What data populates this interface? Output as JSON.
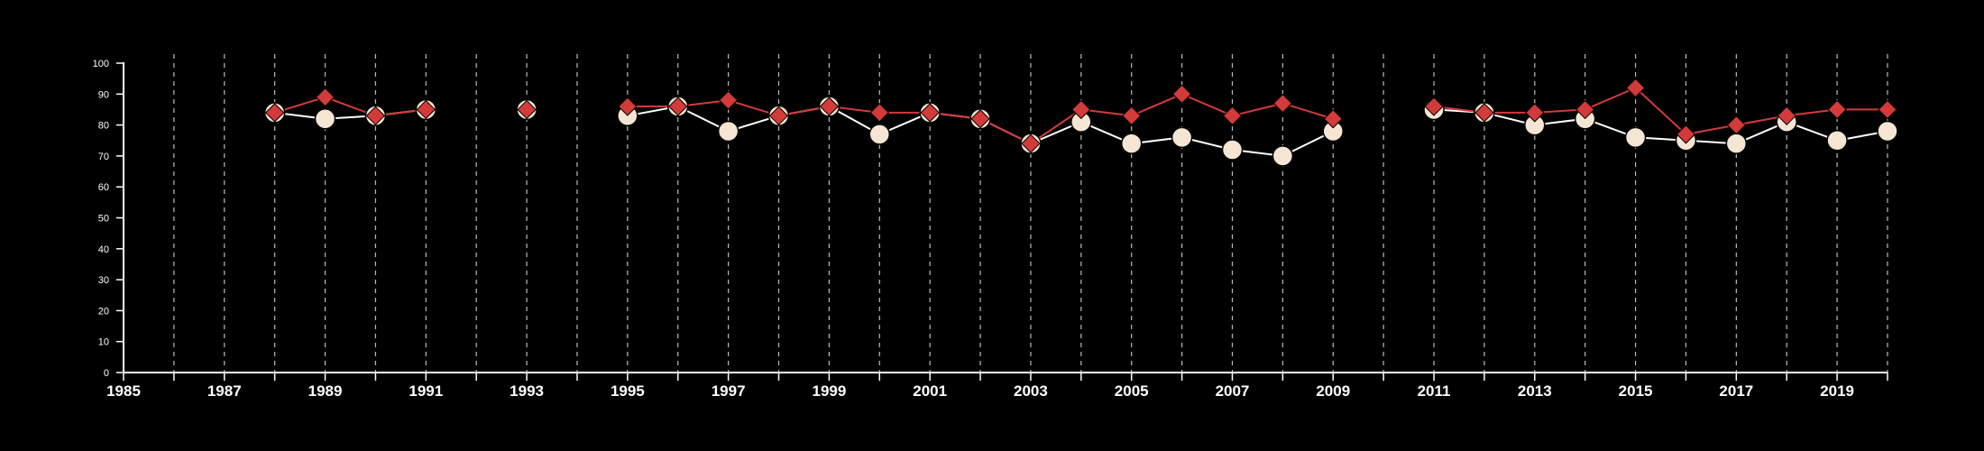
{
  "chart_data": {
    "type": "line",
    "title": "",
    "xlabel": "",
    "ylabel": "",
    "xlim": [
      1985,
      2020
    ],
    "ylim": [
      0,
      100
    ],
    "x_ticks": [
      "1985",
      "1987",
      "1989",
      "1991",
      "1993",
      "1995",
      "1997",
      "1999",
      "2001",
      "2003",
      "2005",
      "2007",
      "2009",
      "2011",
      "2013",
      "2015",
      "2017",
      "2019"
    ],
    "y_ticks": [
      "0",
      "10",
      "20",
      "30",
      "40",
      "50",
      "60",
      "70",
      "80",
      "90",
      "100"
    ],
    "grid": {
      "vertical": true,
      "horizontal": false
    },
    "series": [
      {
        "marker": "circle",
        "color": "#f5e6d3",
        "points": [
          {
            "x": 1988,
            "y": 84
          },
          {
            "x": 1989,
            "y": 82
          },
          {
            "x": 1990,
            "y": 83
          },
          {
            "x": 1991,
            "y": 85
          },
          {
            "x": 1993,
            "y": 85
          },
          {
            "x": 1995,
            "y": 83
          },
          {
            "x": 1996,
            "y": 86
          },
          {
            "x": 1997,
            "y": 78
          },
          {
            "x": 1998,
            "y": 83
          },
          {
            "x": 1999,
            "y": 86
          },
          {
            "x": 2000,
            "y": 77
          },
          {
            "x": 2001,
            "y": 84
          },
          {
            "x": 2002,
            "y": 82
          },
          {
            "x": 2003,
            "y": 74
          },
          {
            "x": 2004,
            "y": 81
          },
          {
            "x": 2005,
            "y": 74
          },
          {
            "x": 2006,
            "y": 76
          },
          {
            "x": 2007,
            "y": 72
          },
          {
            "x": 2008,
            "y": 70
          },
          {
            "x": 2009,
            "y": 78
          },
          {
            "x": 2011,
            "y": 85
          },
          {
            "x": 2012,
            "y": 84
          },
          {
            "x": 2013,
            "y": 80
          },
          {
            "x": 2014,
            "y": 82
          },
          {
            "x": 2015,
            "y": 76
          },
          {
            "x": 2016,
            "y": 75
          },
          {
            "x": 2017,
            "y": 74
          },
          {
            "x": 2018,
            "y": 81
          },
          {
            "x": 2019,
            "y": 75
          },
          {
            "x": 2020,
            "y": 78
          }
        ]
      },
      {
        "marker": "diamond",
        "color": "#d33a3a",
        "points": [
          {
            "x": 1988,
            "y": 84
          },
          {
            "x": 1989,
            "y": 89
          },
          {
            "x": 1990,
            "y": 83
          },
          {
            "x": 1991,
            "y": 85
          },
          {
            "x": 1993,
            "y": 85
          },
          {
            "x": 1995,
            "y": 86
          },
          {
            "x": 1996,
            "y": 86
          },
          {
            "x": 1997,
            "y": 88
          },
          {
            "x": 1998,
            "y": 83
          },
          {
            "x": 1999,
            "y": 86
          },
          {
            "x": 2000,
            "y": 84
          },
          {
            "x": 2001,
            "y": 84
          },
          {
            "x": 2002,
            "y": 82
          },
          {
            "x": 2003,
            "y": 74
          },
          {
            "x": 2004,
            "y": 85
          },
          {
            "x": 2005,
            "y": 83
          },
          {
            "x": 2006,
            "y": 90
          },
          {
            "x": 2007,
            "y": 83
          },
          {
            "x": 2008,
            "y": 87
          },
          {
            "x": 2009,
            "y": 82
          },
          {
            "x": 2011,
            "y": 86
          },
          {
            "x": 2012,
            "y": 84
          },
          {
            "x": 2013,
            "y": 84
          },
          {
            "x": 2014,
            "y": 85
          },
          {
            "x": 2015,
            "y": 92
          },
          {
            "x": 2016,
            "y": 77
          },
          {
            "x": 2017,
            "y": 80
          },
          {
            "x": 2018,
            "y": 83
          },
          {
            "x": 2019,
            "y": 85
          },
          {
            "x": 2020,
            "y": 85
          }
        ]
      }
    ]
  }
}
